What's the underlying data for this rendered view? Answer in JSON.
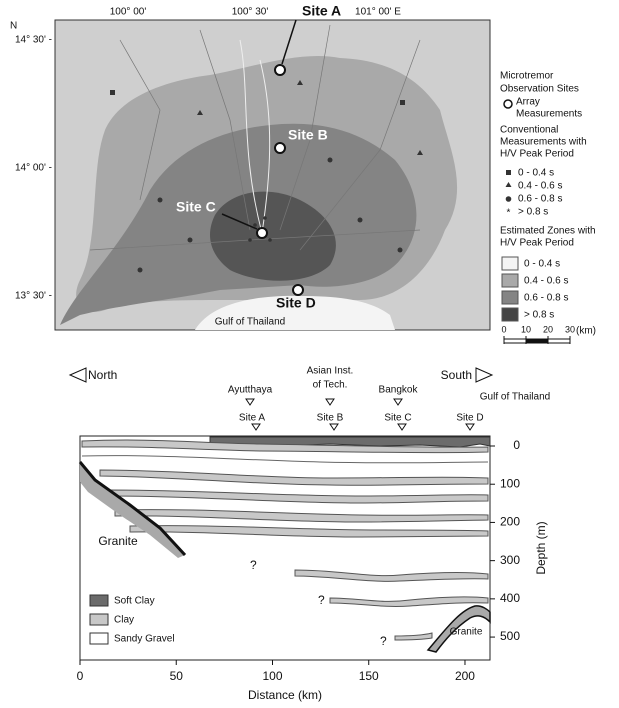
{
  "map": {
    "north": "N",
    "lat_labels": [
      "14° 30' -",
      "14° 00' -",
      "13° 30' -"
    ],
    "lon_labels": [
      "100° 00'",
      "100° 30'",
      "101° 00' E"
    ],
    "sites": [
      "Site A",
      "Site B",
      "Site C",
      "Site D"
    ],
    "gulf": "Gulf of Thailand",
    "legend": {
      "title": [
        "Microtremor",
        "Observation Sites"
      ],
      "array": [
        "Array",
        "Measurements"
      ],
      "conventional": [
        "Conventional",
        "Measurements with",
        "H/V Peak Period"
      ],
      "conventional_items": [
        "0 - 0.4 s",
        "0.4 - 0.6 s",
        "0.6 - 0.8 s",
        "> 0.8 s"
      ],
      "zones_title": [
        "Estimated Zones with",
        "H/V Peak Period"
      ],
      "zone_items": [
        "0 - 0.4 s",
        "0.4 - 0.6 s",
        "0.6 - 0.8 s",
        "> 0.8 s"
      ],
      "scale_ticks": [
        0,
        10,
        20,
        30
      ],
      "scale_unit": "(km)"
    }
  },
  "section": {
    "north": "North",
    "south": "South",
    "ayutthaya": "Ayutthaya",
    "ait": [
      "Asian Inst.",
      "of Tech."
    ],
    "bangkok": "Bangkok",
    "gulf": "Gulf of Thailand",
    "sites": [
      "Site A",
      "Site B",
      "Site C",
      "Site D"
    ],
    "granite": [
      "Granite",
      "Granite"
    ],
    "unknown": [
      "?",
      "?",
      "?"
    ],
    "legend": [
      "Soft Clay",
      "Clay",
      "Sandy Gravel"
    ],
    "xlabel": "Distance (km)",
    "ylabel": "Depth (m)",
    "xlim": [
      0,
      213
    ],
    "ylim": [
      0,
      560
    ],
    "xticks": [
      0,
      50,
      100,
      150,
      200
    ],
    "yticks": [
      0,
      100,
      200,
      300,
      400,
      500
    ]
  }
}
